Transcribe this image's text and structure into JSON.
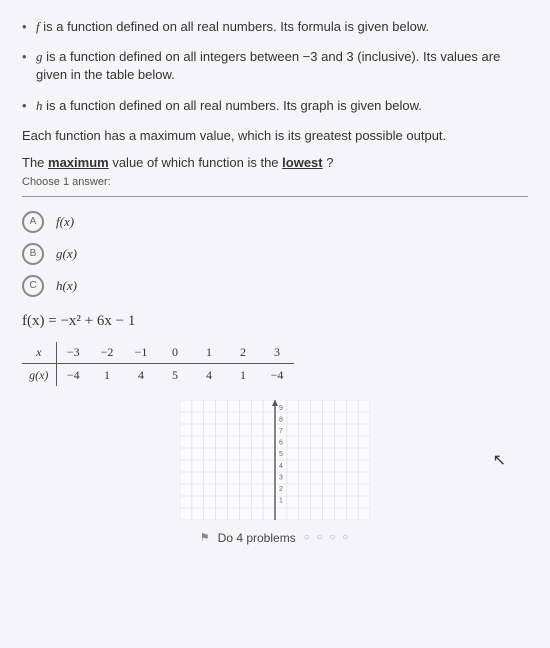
{
  "intro": [
    {
      "bullet": "•",
      "fn": "f",
      "text_after": " is a function defined on all real numbers. Its formula is given below."
    },
    {
      "bullet": "•",
      "fn": "g",
      "text_after": " is a function defined on all integers between −3 and 3 (inclusive). Its values are given in the table below."
    },
    {
      "bullet": "•",
      "fn": "h",
      "text_after": " is a function defined on all real numbers. Its graph is given below."
    }
  ],
  "paragraph": "Each function has a maximum value, which is its greatest possible output.",
  "question_parts": {
    "pre": "The ",
    "mid": "maximum",
    "post": " value of which function is the ",
    "emph": "lowest",
    "end": " ?"
  },
  "choose_label": "Choose 1 answer:",
  "options": [
    {
      "letter": "A",
      "fn": "f(x)"
    },
    {
      "letter": "B",
      "fn": "g(x)"
    },
    {
      "letter": "C",
      "fn": "h(x)"
    }
  ],
  "formula": "f(x) = −x² + 6x − 1",
  "gtable": {
    "head_label": "x",
    "row_label": "g(x)",
    "x": [
      "−3",
      "−2",
      "−1",
      "0",
      "1",
      "2",
      "3"
    ],
    "gx": [
      "−4",
      "1",
      "4",
      "5",
      "4",
      "1",
      "−4"
    ]
  },
  "graph": {
    "grid_color": "#d8d8dc",
    "axis_color": "#555555",
    "bg": "#fbfbfd",
    "width": 190,
    "height": 120,
    "y_ticks": [
      "9",
      "8",
      "7",
      "6",
      "5",
      "4",
      "3",
      "2",
      "1"
    ]
  },
  "footer": {
    "flag": "⚑",
    "text": "Do 4 problems",
    "dots": "○ ○ ○ ○"
  },
  "cursor": "↖"
}
